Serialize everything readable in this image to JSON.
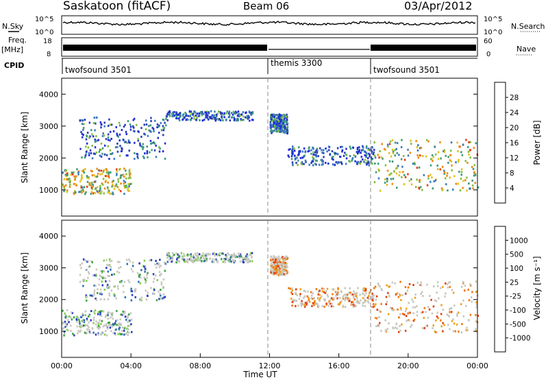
{
  "header": {
    "radar": "Saskatoon (fitACF)",
    "beam": "Beam 06",
    "date": "03/Apr/2012"
  },
  "strips": {
    "nsky_label": "N.Sky",
    "nsearch_label": "N.Search",
    "noise_ticks_left": [
      "10^5",
      "10^0"
    ],
    "noise_ticks_right": [
      "10^5",
      "10^0"
    ],
    "freq_label": "Freq.",
    "freq_unit": "[MHz]",
    "freq_ticks": [
      "18",
      "8"
    ],
    "nave_label": "Nave",
    "nave_ticks": [
      "60",
      "0"
    ],
    "cpid_label": "CPID",
    "cpid_segments": [
      {
        "name": "twofsound 3501",
        "start": "00:00"
      },
      {
        "name": "themis 3300",
        "start": "12:00"
      },
      {
        "name": "twofsound 3501",
        "start": "18:00"
      }
    ]
  },
  "colors": {
    "power_scale": [
      "#1f2fd8",
      "#2b3fb8",
      "#3a7bbf",
      "#3f9a7a",
      "#7fbf3f",
      "#e0c020",
      "#f08a10",
      "#e63a10",
      "#d80f0f"
    ],
    "velocity_scale": [
      "#2a3cc0",
      "#2e6fb6",
      "#3fa53f",
      "#7fd04a",
      "#c8c8c0",
      "#c8c8c0",
      "#f0a020",
      "#f07a10",
      "#e04010",
      "#e00000"
    ]
  },
  "chart_data": [
    {
      "type": "heatmap",
      "panel": "power",
      "ylabel": "Slant Range [km]",
      "ylim": [
        180,
        4500
      ],
      "yticks": [
        "1000",
        "2000",
        "3000",
        "4000"
      ],
      "colorbar_label": "Power [dB]",
      "colorbar_ticks": [
        "28",
        "24",
        "20",
        "16",
        "12",
        "8",
        "4"
      ],
      "features": [
        {
          "time_hours": [
            0,
            4
          ],
          "range_km": [
            900,
            1700
          ],
          "level": "high"
        },
        {
          "time_hours": [
            1,
            6
          ],
          "range_km": [
            2000,
            3300
          ],
          "level": "medium"
        },
        {
          "time_hours": [
            6,
            11
          ],
          "range_km": [
            3200,
            3500
          ],
          "level": "medium"
        },
        {
          "time_hours": [
            12,
            13
          ],
          "range_km": [
            2800,
            3400
          ],
          "level": "medium"
        },
        {
          "time_hours": [
            13,
            18
          ],
          "range_km": [
            1800,
            2400
          ],
          "level": "medium"
        },
        {
          "time_hours": [
            18,
            24
          ],
          "range_km": [
            1000,
            2600
          ],
          "level": "high"
        }
      ]
    },
    {
      "type": "heatmap",
      "panel": "velocity",
      "ylabel": "Slant Range [km]",
      "ylim": [
        180,
        4500
      ],
      "yticks": [
        "1000",
        "2000",
        "3000",
        "4000"
      ],
      "colorbar_label": "Velocity [m s⁻¹]",
      "colorbar_ticks": [
        "1000",
        "500",
        "100",
        "25",
        "-25",
        "-100",
        "-500",
        "-1000"
      ],
      "xlabel": "Time UT",
      "xticks": [
        "00:00",
        "04:00",
        "08:00",
        "12:00",
        "16:00",
        "20:00",
        "00:00"
      ],
      "xlim_hours": [
        0,
        24
      ]
    }
  ]
}
